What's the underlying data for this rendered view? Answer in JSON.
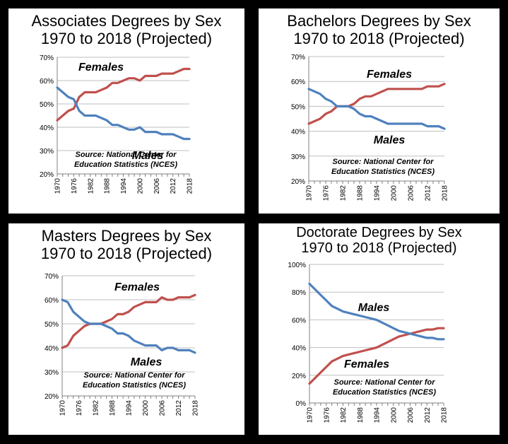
{
  "colors": {
    "females": "#c0504d",
    "males": "#4f81bd",
    "grid": "#bfbfbf",
    "axis": "#808080"
  },
  "chart_data": [
    {
      "type": "line",
      "title": [
        "Associates Degrees by Sex",
        "1970 to 2018 (Projected)"
      ],
      "x": [
        1970,
        1972,
        1974,
        1976,
        1978,
        1980,
        1982,
        1984,
        1986,
        1988,
        1990,
        1992,
        1994,
        1996,
        1998,
        2000,
        2002,
        2004,
        2006,
        2008,
        2010,
        2012,
        2014,
        2016,
        2018
      ],
      "xticks": [
        "1970",
        "1976",
        "1982",
        "1988",
        "1994",
        "2000",
        "2006",
        "2012",
        "2018"
      ],
      "yticks": [
        "20%",
        "30%",
        "40%",
        "50%",
        "60%",
        "70%"
      ],
      "ylim": [
        20,
        70
      ],
      "series": [
        {
          "name": "Females",
          "values": [
            43,
            45,
            47,
            48,
            53,
            55,
            55,
            55,
            56,
            57,
            59,
            59,
            60,
            61,
            61,
            60,
            62,
            62,
            62,
            63,
            63,
            63,
            64,
            65,
            65
          ]
        },
        {
          "name": "Males",
          "values": [
            57,
            55,
            53,
            52,
            47,
            45,
            45,
            45,
            44,
            43,
            41,
            41,
            40,
            39,
            39,
            40,
            38,
            38,
            38,
            37,
            37,
            37,
            36,
            35,
            35
          ]
        }
      ],
      "source": [
        "Source: National Center for",
        "Education Statistics (NCES)"
      ]
    },
    {
      "type": "line",
      "title": [
        "Bachelors Degrees by Sex",
        "1970 to 2018 (Projected)"
      ],
      "x": [
        1970,
        1972,
        1974,
        1976,
        1978,
        1980,
        1982,
        1984,
        1986,
        1988,
        1990,
        1992,
        1994,
        1996,
        1998,
        2000,
        2002,
        2004,
        2006,
        2008,
        2010,
        2012,
        2014,
        2016,
        2018
      ],
      "xticks": [
        "1970",
        "1976",
        "1982",
        "1988",
        "1994",
        "2000",
        "2006",
        "2012",
        "2018"
      ],
      "yticks": [
        "20%",
        "30%",
        "40%",
        "50%",
        "60%",
        "70%"
      ],
      "ylim": [
        20,
        70
      ],
      "series": [
        {
          "name": "Females",
          "values": [
            43,
            44,
            45,
            47,
            48,
            50,
            50,
            50,
            51,
            53,
            54,
            54,
            55,
            56,
            57,
            57,
            57,
            57,
            57,
            57,
            57,
            58,
            58,
            58,
            59
          ]
        },
        {
          "name": "Males",
          "values": [
            57,
            56,
            55,
            53,
            52,
            50,
            50,
            50,
            49,
            47,
            46,
            46,
            45,
            44,
            43,
            43,
            43,
            43,
            43,
            43,
            43,
            42,
            42,
            42,
            41
          ]
        }
      ],
      "source": [
        "Source: National Center for",
        "Education Statistics (NCES)"
      ]
    },
    {
      "type": "line",
      "title": [
        "Masters Degrees by Sex",
        "1970 to 2018 (Projected)"
      ],
      "x": [
        1970,
        1972,
        1974,
        1976,
        1978,
        1980,
        1982,
        1984,
        1986,
        1988,
        1990,
        1992,
        1994,
        1996,
        1998,
        2000,
        2002,
        2004,
        2006,
        2008,
        2010,
        2012,
        2014,
        2016,
        2018
      ],
      "xticks": [
        "1970",
        "1976",
        "1982",
        "1988",
        "1994",
        "2000",
        "2006",
        "2012",
        "2018"
      ],
      "yticks": [
        "20%",
        "30%",
        "40%",
        "50%",
        "60%",
        "70%"
      ],
      "ylim": [
        20,
        70
      ],
      "series": [
        {
          "name": "Females",
          "values": [
            40,
            41,
            45,
            47,
            49,
            50,
            50,
            50,
            51,
            52,
            54,
            54,
            55,
            57,
            58,
            59,
            59,
            59,
            61,
            60,
            60,
            61,
            61,
            61,
            62
          ]
        },
        {
          "name": "Males",
          "values": [
            60,
            59,
            55,
            53,
            51,
            50,
            50,
            50,
            49,
            48,
            46,
            46,
            45,
            43,
            42,
            41,
            41,
            41,
            39,
            40,
            40,
            39,
            39,
            39,
            38
          ]
        }
      ],
      "source": [
        "Source: National Center for",
        "Education Statistics (NCES)"
      ]
    },
    {
      "type": "line",
      "title": [
        "Doctorate Degrees by Sex",
        "1970 to 2018 (Projected)"
      ],
      "x": [
        1970,
        1972,
        1974,
        1976,
        1978,
        1980,
        1982,
        1984,
        1986,
        1988,
        1990,
        1992,
        1994,
        1996,
        1998,
        2000,
        2002,
        2004,
        2006,
        2008,
        2010,
        2012,
        2014,
        2016,
        2018
      ],
      "xticks": [
        "1970",
        "1976",
        "1982",
        "1988",
        "1994",
        "2000",
        "2006",
        "2012",
        "2018"
      ],
      "yticks": [
        "0%",
        "20%",
        "40%",
        "60%",
        "80%",
        "100%"
      ],
      "ylim": [
        0,
        100
      ],
      "series": [
        {
          "name": "Females",
          "values": [
            14,
            18,
            22,
            26,
            30,
            32,
            34,
            35,
            36,
            37,
            38,
            39,
            40,
            42,
            44,
            46,
            48,
            49,
            50,
            51,
            52,
            53,
            53,
            54,
            54
          ]
        },
        {
          "name": "Males",
          "values": [
            86,
            82,
            78,
            74,
            70,
            68,
            66,
            65,
            64,
            63,
            62,
            61,
            60,
            58,
            56,
            54,
            52,
            51,
            50,
            49,
            48,
            47,
            47,
            46,
            46
          ]
        }
      ],
      "source": [
        "Source: National Center for",
        "Education Statistics (NCES)"
      ]
    }
  ]
}
